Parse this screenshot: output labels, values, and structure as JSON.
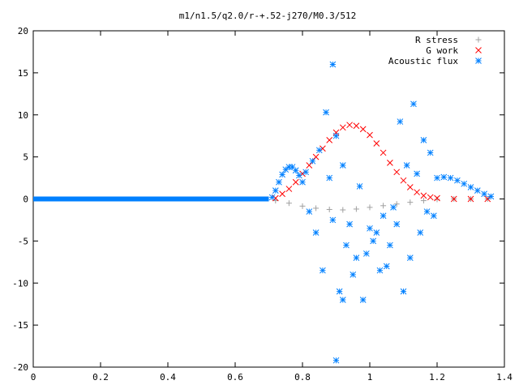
{
  "chart_data": {
    "type": "scatter",
    "title": "m1/n1.5/q2.0/r-+.52-j270/M0.3/512",
    "xlabel": "",
    "ylabel": "",
    "xlim": [
      0,
      1.4
    ],
    "ylim": [
      -20,
      20
    ],
    "x_ticks": [
      "0",
      "0.2",
      "0.4",
      "0.6",
      "0.8",
      "1",
      "1.2",
      "1.4"
    ],
    "y_ticks": [
      "20",
      "15",
      "10",
      "5",
      "0",
      "-5",
      "-10",
      "-15",
      "-20"
    ],
    "grid": false,
    "legend_position": "top-right",
    "series": [
      {
        "name": "R stress",
        "marker": "plus",
        "color": "#a0a0a0",
        "points": [
          [
            0.72,
            -0.2
          ],
          [
            0.76,
            -0.5
          ],
          [
            0.8,
            -0.85
          ],
          [
            0.84,
            -1.1
          ],
          [
            0.88,
            -1.25
          ],
          [
            0.92,
            -1.3
          ],
          [
            0.96,
            -1.2
          ],
          [
            1.0,
            -1.0
          ],
          [
            1.04,
            -0.8
          ],
          [
            1.08,
            -0.6
          ],
          [
            1.12,
            -0.4
          ],
          [
            1.16,
            -0.2
          ],
          [
            1.2,
            -0.05
          ],
          [
            1.25,
            0.0
          ],
          [
            1.3,
            0.0
          ],
          [
            1.35,
            0.0
          ]
        ]
      },
      {
        "name": "G work",
        "marker": "cross",
        "color": "#ff0000",
        "points": [
          [
            0.72,
            0.1
          ],
          [
            0.74,
            0.6
          ],
          [
            0.76,
            1.2
          ],
          [
            0.78,
            2.0
          ],
          [
            0.8,
            3.0
          ],
          [
            0.82,
            4.0
          ],
          [
            0.84,
            5.0
          ],
          [
            0.86,
            6.0
          ],
          [
            0.88,
            7.0
          ],
          [
            0.9,
            7.9
          ],
          [
            0.92,
            8.5
          ],
          [
            0.94,
            8.8
          ],
          [
            0.96,
            8.7
          ],
          [
            0.98,
            8.3
          ],
          [
            1.0,
            7.6
          ],
          [
            1.02,
            6.6
          ],
          [
            1.04,
            5.5
          ],
          [
            1.06,
            4.3
          ],
          [
            1.08,
            3.2
          ],
          [
            1.1,
            2.2
          ],
          [
            1.12,
            1.4
          ],
          [
            1.14,
            0.8
          ],
          [
            1.16,
            0.4
          ],
          [
            1.18,
            0.2
          ],
          [
            1.2,
            0.1
          ],
          [
            1.25,
            0.0
          ],
          [
            1.3,
            0.0
          ],
          [
            1.35,
            0.0
          ]
        ]
      },
      {
        "name": "Acoustic flux",
        "marker": "star",
        "color": "#0080ff",
        "baseline": [
          [
            0.0,
            0
          ],
          [
            0.05,
            0
          ],
          [
            0.1,
            0
          ],
          [
            0.15,
            0
          ],
          [
            0.2,
            0
          ],
          [
            0.25,
            0
          ],
          [
            0.3,
            0
          ],
          [
            0.35,
            0
          ],
          [
            0.4,
            0
          ],
          [
            0.45,
            0
          ],
          [
            0.5,
            0
          ],
          [
            0.55,
            0
          ],
          [
            0.6,
            0
          ],
          [
            0.65,
            0
          ],
          [
            0.7,
            0
          ]
        ],
        "points": [
          [
            0.71,
            0.2
          ],
          [
            0.72,
            1.0
          ],
          [
            0.73,
            2.0
          ],
          [
            0.74,
            2.9
          ],
          [
            0.75,
            3.5
          ],
          [
            0.76,
            3.8
          ],
          [
            0.77,
            3.8
          ],
          [
            0.78,
            3.4
          ],
          [
            0.79,
            2.8
          ],
          [
            0.8,
            2.0
          ],
          [
            0.81,
            3.2
          ],
          [
            0.82,
            -1.5
          ],
          [
            0.83,
            4.5
          ],
          [
            0.84,
            -4.0
          ],
          [
            0.85,
            5.8
          ],
          [
            0.86,
            -8.5
          ],
          [
            0.87,
            10.3
          ],
          [
            0.88,
            2.5
          ],
          [
            0.89,
            16.0
          ],
          [
            0.89,
            -2.5
          ],
          [
            0.9,
            -19.2
          ],
          [
            0.9,
            7.5
          ],
          [
            0.91,
            -11.0
          ],
          [
            0.92,
            -12.0
          ],
          [
            0.92,
            4.0
          ],
          [
            0.93,
            -5.5
          ],
          [
            0.94,
            -3.0
          ],
          [
            0.95,
            -9.0
          ],
          [
            0.96,
            -7.0
          ],
          [
            0.97,
            1.5
          ],
          [
            0.98,
            -12.0
          ],
          [
            0.99,
            -6.5
          ],
          [
            1.0,
            -3.5
          ],
          [
            1.01,
            -5.0
          ],
          [
            1.02,
            -4.0
          ],
          [
            1.03,
            -8.5
          ],
          [
            1.04,
            -2.0
          ],
          [
            1.05,
            -8.0
          ],
          [
            1.06,
            -5.5
          ],
          [
            1.07,
            -1.0
          ],
          [
            1.08,
            -3.0
          ],
          [
            1.09,
            9.2
          ],
          [
            1.1,
            -11.0
          ],
          [
            1.11,
            4.0
          ],
          [
            1.12,
            -7.0
          ],
          [
            1.13,
            11.3
          ],
          [
            1.14,
            3.0
          ],
          [
            1.15,
            -4.0
          ],
          [
            1.16,
            7.0
          ],
          [
            1.17,
            -1.5
          ],
          [
            1.18,
            5.5
          ],
          [
            1.19,
            -2.0
          ],
          [
            1.2,
            2.5
          ],
          [
            1.22,
            2.6
          ],
          [
            1.24,
            2.5
          ],
          [
            1.26,
            2.2
          ],
          [
            1.28,
            1.8
          ],
          [
            1.3,
            1.4
          ],
          [
            1.32,
            1.0
          ],
          [
            1.34,
            0.6
          ],
          [
            1.36,
            0.3
          ]
        ]
      }
    ]
  }
}
